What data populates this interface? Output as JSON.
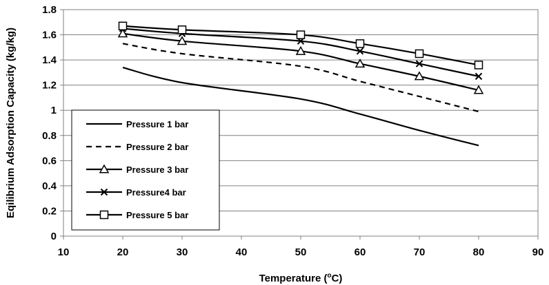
{
  "chart_data": {
    "type": "line",
    "xlabel": "Temperature (",
    "xlabel_sup": "o",
    "xlabel_unit": "C)",
    "ylabel": "Eqilibrium Adsorption Capacity (kg/kg)",
    "xlim": [
      10,
      90
    ],
    "ylim": [
      0,
      1.8
    ],
    "xticks": [
      "10",
      "20",
      "30",
      "40",
      "50",
      "60",
      "70",
      "80",
      "90"
    ],
    "yticks": [
      "0",
      "0.2",
      "0.4",
      "0.6",
      "0.8",
      "1",
      "1.2",
      "1.4",
      "1.6",
      "1.8"
    ],
    "grid": "horizontal",
    "legend_position": "lower-left",
    "x": [
      20,
      30,
      50,
      60,
      70,
      80
    ],
    "series": [
      {
        "name": "Pressure 1 bar",
        "style": "solid",
        "marker": "none",
        "values": [
          1.34,
          1.22,
          1.09,
          0.97,
          0.84,
          0.72
        ]
      },
      {
        "name": "Pressure 2 bar",
        "style": "dashed",
        "marker": "none",
        "values": [
          1.53,
          1.45,
          1.35,
          1.23,
          1.11,
          0.99
        ]
      },
      {
        "name": "Pressure 3 bar",
        "style": "solid",
        "marker": "triangle",
        "values": [
          1.61,
          1.55,
          1.47,
          1.37,
          1.27,
          1.16
        ]
      },
      {
        "name": "Pressure4 bar",
        "style": "solid",
        "marker": "x",
        "values": [
          1.65,
          1.61,
          1.55,
          1.47,
          1.37,
          1.27
        ]
      },
      {
        "name": "Pressure 5 bar",
        "style": "solid",
        "marker": "square",
        "values": [
          1.67,
          1.64,
          1.6,
          1.53,
          1.45,
          1.36
        ]
      }
    ]
  }
}
